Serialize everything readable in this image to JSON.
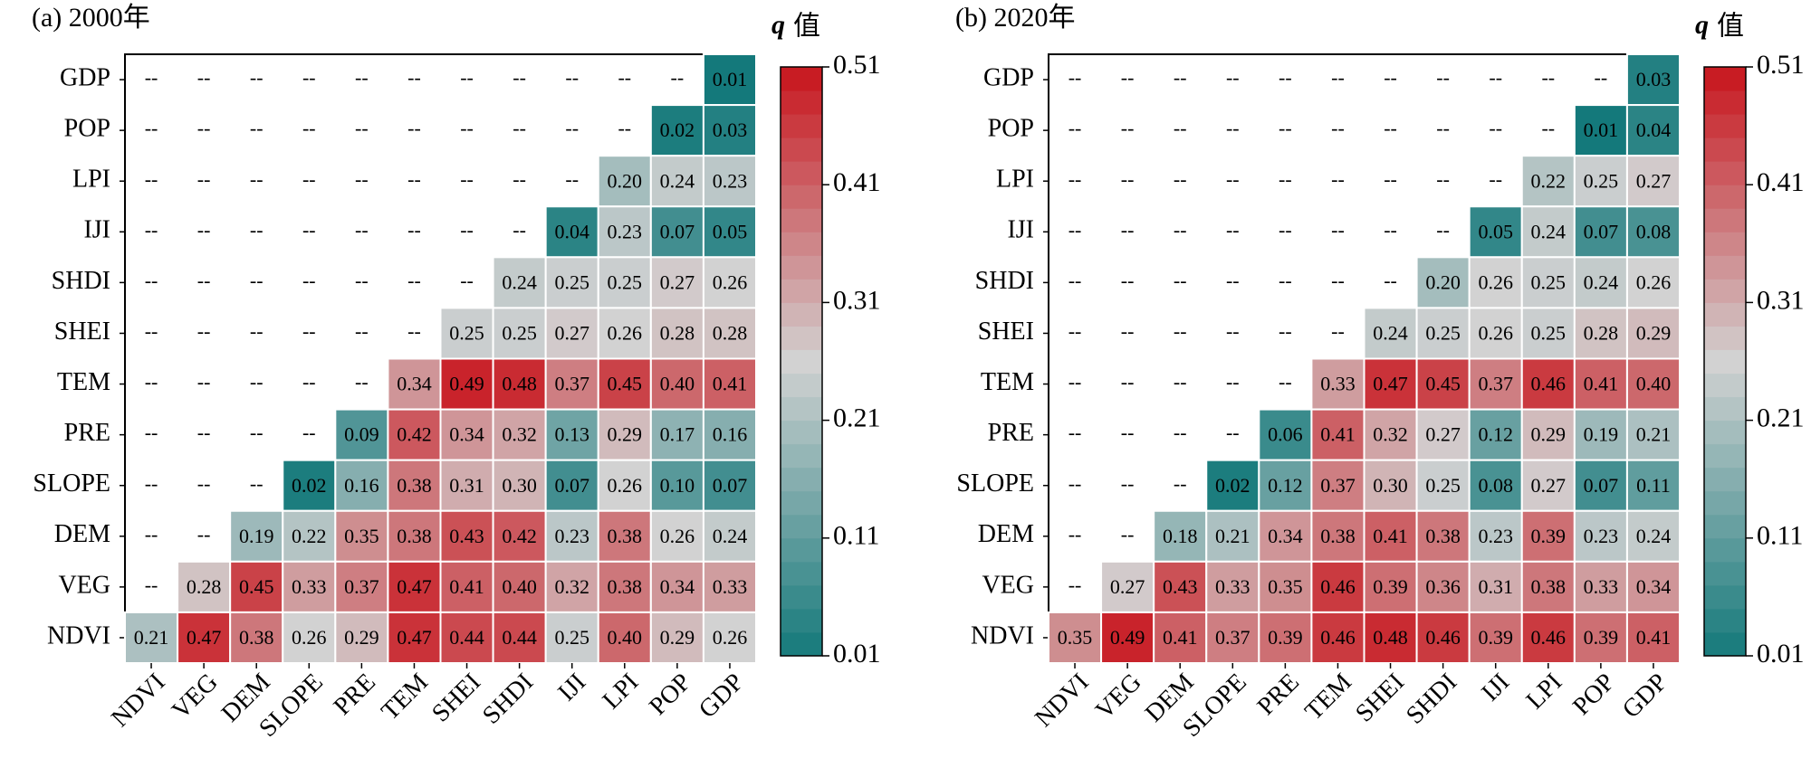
{
  "chart_data": [
    {
      "type": "heatmap",
      "title": "(a) 2000年",
      "colorbar_symbol": "q",
      "colorbar_text": "值",
      "empty_label": "--",
      "rows": [
        "GDP",
        "POP",
        "LPI",
        "IJI",
        "SHDI",
        "SHEI",
        "TEM",
        "PRE",
        "SLOPE",
        "DEM",
        "VEG",
        "NDVI"
      ],
      "columns": [
        "NDVI",
        "VEG",
        "DEM",
        "SLOPE",
        "PRE",
        "TEM",
        "SHEI",
        "SHDI",
        "IJI",
        "LPI",
        "POP",
        "GDP"
      ],
      "values": [
        [
          null,
          null,
          null,
          null,
          null,
          null,
          null,
          null,
          null,
          null,
          null,
          0.01
        ],
        [
          null,
          null,
          null,
          null,
          null,
          null,
          null,
          null,
          null,
          null,
          0.02,
          0.03
        ],
        [
          null,
          null,
          null,
          null,
          null,
          null,
          null,
          null,
          null,
          0.2,
          0.24,
          0.23
        ],
        [
          null,
          null,
          null,
          null,
          null,
          null,
          null,
          null,
          0.04,
          0.23,
          0.07,
          0.05
        ],
        [
          null,
          null,
          null,
          null,
          null,
          null,
          null,
          0.24,
          0.25,
          0.25,
          0.27,
          0.26
        ],
        [
          null,
          null,
          null,
          null,
          null,
          null,
          0.25,
          0.25,
          0.27,
          0.26,
          0.28,
          0.28
        ],
        [
          null,
          null,
          null,
          null,
          null,
          0.34,
          0.49,
          0.48,
          0.37,
          0.45,
          0.4,
          0.41
        ],
        [
          null,
          null,
          null,
          null,
          0.09,
          0.42,
          0.34,
          0.32,
          0.13,
          0.29,
          0.17,
          0.16
        ],
        [
          null,
          null,
          null,
          0.02,
          0.16,
          0.38,
          0.31,
          0.3,
          0.07,
          0.26,
          0.1,
          0.07
        ],
        [
          null,
          null,
          0.19,
          0.22,
          0.35,
          0.38,
          0.43,
          0.42,
          0.23,
          0.38,
          0.26,
          0.24
        ],
        [
          null,
          0.28,
          0.45,
          0.33,
          0.37,
          0.47,
          0.41,
          0.4,
          0.32,
          0.38,
          0.34,
          0.33
        ],
        [
          0.21,
          0.47,
          0.38,
          0.26,
          0.29,
          0.47,
          0.44,
          0.44,
          0.25,
          0.4,
          0.29,
          0.26
        ]
      ],
      "value_labels": [
        [
          null,
          null,
          null,
          null,
          null,
          null,
          null,
          null,
          null,
          null,
          null,
          "0.01"
        ],
        [
          null,
          null,
          null,
          null,
          null,
          null,
          null,
          null,
          null,
          null,
          "0.02",
          "0.03"
        ],
        [
          null,
          null,
          null,
          null,
          null,
          null,
          null,
          null,
          null,
          "0.20",
          "0.24",
          "0.23"
        ],
        [
          null,
          null,
          null,
          null,
          null,
          null,
          null,
          null,
          "0.04",
          "0.23",
          "0.07",
          "0.05"
        ],
        [
          null,
          null,
          null,
          null,
          null,
          null,
          null,
          "0.24",
          "0.25",
          "0.25",
          "0.27",
          "0.26"
        ],
        [
          null,
          null,
          null,
          null,
          null,
          null,
          "0.25",
          "0.25",
          "0.27",
          "0.26",
          "0.28",
          "0.28"
        ],
        [
          null,
          null,
          null,
          null,
          null,
          "0.34",
          "0.49",
          "0.48",
          "0.37",
          "0.45",
          "0.40",
          "0.41"
        ],
        [
          null,
          null,
          null,
          null,
          "0.09",
          "0.42",
          "0.34",
          "0.32",
          "0.13",
          "0.29",
          "0.17",
          "0.16"
        ],
        [
          null,
          null,
          null,
          "0.02",
          "0.16",
          "0.38",
          "0.31",
          "0.30",
          "0.07",
          "0.26",
          "0.10",
          "0.07"
        ],
        [
          null,
          null,
          "0.19",
          "0.22",
          "0.35",
          "0.38",
          "0.43",
          "0.42",
          "0.23",
          "0.38",
          "0.26",
          "0.24"
        ],
        [
          null,
          "0.28",
          "0.45",
          "0.33",
          "0.37",
          "0.47",
          "0.41",
          "0.40",
          "0.32",
          "0.38",
          "0.34",
          "0.33"
        ],
        [
          "0.21",
          "0.47",
          "0.38",
          "0.26",
          "0.29",
          "0.47",
          "0.44",
          "0.44",
          "0.25",
          "0.40",
          "0.29",
          "0.26"
        ]
      ],
      "zlim": [
        0.01,
        0.51
      ],
      "zticks": [
        0.01,
        0.11,
        0.21,
        0.31,
        0.41,
        0.51
      ],
      "colormap": [
        "#14797b",
        "#d2d2d2",
        "#c8141c"
      ]
    },
    {
      "type": "heatmap",
      "title": "(b) 2020年",
      "colorbar_symbol": "q",
      "colorbar_text": "值",
      "empty_label": "--",
      "rows": [
        "GDP",
        "POP",
        "LPI",
        "IJI",
        "SHDI",
        "SHEI",
        "TEM",
        "PRE",
        "SLOPE",
        "DEM",
        "VEG",
        "NDVI"
      ],
      "columns": [
        "NDVI",
        "VEG",
        "DEM",
        "SLOPE",
        "PRE",
        "TEM",
        "SHEI",
        "SHDI",
        "IJI",
        "LPI",
        "POP",
        "GDP"
      ],
      "values": [
        [
          null,
          null,
          null,
          null,
          null,
          null,
          null,
          null,
          null,
          null,
          null,
          0.03
        ],
        [
          null,
          null,
          null,
          null,
          null,
          null,
          null,
          null,
          null,
          null,
          0.01,
          0.04
        ],
        [
          null,
          null,
          null,
          null,
          null,
          null,
          null,
          null,
          null,
          0.22,
          0.25,
          0.27
        ],
        [
          null,
          null,
          null,
          null,
          null,
          null,
          null,
          null,
          0.05,
          0.24,
          0.07,
          0.08
        ],
        [
          null,
          null,
          null,
          null,
          null,
          null,
          null,
          0.2,
          0.26,
          0.25,
          0.24,
          0.26
        ],
        [
          null,
          null,
          null,
          null,
          null,
          null,
          0.24,
          0.25,
          0.26,
          0.25,
          0.28,
          0.29
        ],
        [
          null,
          null,
          null,
          null,
          null,
          0.33,
          0.47,
          0.45,
          0.37,
          0.46,
          0.41,
          0.4
        ],
        [
          null,
          null,
          null,
          null,
          0.06,
          0.41,
          0.32,
          0.27,
          0.12,
          0.29,
          0.19,
          0.21
        ],
        [
          null,
          null,
          null,
          0.02,
          0.12,
          0.37,
          0.3,
          0.25,
          0.08,
          0.27,
          0.07,
          0.11
        ],
        [
          null,
          null,
          0.18,
          0.21,
          0.34,
          0.38,
          0.41,
          0.38,
          0.23,
          0.39,
          0.23,
          0.24
        ],
        [
          null,
          0.27,
          0.43,
          0.33,
          0.35,
          0.46,
          0.39,
          0.36,
          0.31,
          0.38,
          0.33,
          0.34
        ],
        [
          0.35,
          0.49,
          0.41,
          0.37,
          0.39,
          0.46,
          0.48,
          0.46,
          0.39,
          0.46,
          0.39,
          0.41
        ]
      ],
      "value_labels": [
        [
          null,
          null,
          null,
          null,
          null,
          null,
          null,
          null,
          null,
          null,
          null,
          "0.03"
        ],
        [
          null,
          null,
          null,
          null,
          null,
          null,
          null,
          null,
          null,
          null,
          "0.01",
          "0.04"
        ],
        [
          null,
          null,
          null,
          null,
          null,
          null,
          null,
          null,
          null,
          "0.22",
          "0.25",
          "0.27"
        ],
        [
          null,
          null,
          null,
          null,
          null,
          null,
          null,
          null,
          "0.05",
          "0.24",
          "0.07",
          "0.08"
        ],
        [
          null,
          null,
          null,
          null,
          null,
          null,
          null,
          "0.20",
          "0.26",
          "0.25",
          "0.24",
          "0.26"
        ],
        [
          null,
          null,
          null,
          null,
          null,
          null,
          "0.24",
          "0.25",
          "0.26",
          "0.25",
          "0.28",
          "0.29"
        ],
        [
          null,
          null,
          null,
          null,
          null,
          "0.33",
          "0.47",
          "0.45",
          "0.37",
          "0.46",
          "0.41",
          "0.40"
        ],
        [
          null,
          null,
          null,
          null,
          "0.06",
          "0.41",
          "0.32",
          "0.27",
          "0.12",
          "0.29",
          "0.19",
          "0.21"
        ],
        [
          null,
          null,
          null,
          "0.02",
          "0.12",
          "0.37",
          "0.30",
          "0.25",
          "0.08",
          "0.27",
          "0.07",
          "0.11"
        ],
        [
          null,
          null,
          "0.18",
          "0.21",
          "0.34",
          "0.38",
          "0.41",
          "0.38",
          "0.23",
          "0.39",
          "0.23",
          "0.24"
        ],
        [
          null,
          "0.27",
          "0.43",
          "0.33",
          "0.35",
          "0.46",
          "0.39",
          "0.36",
          "0.31",
          "0.38",
          "0.33",
          "0.34"
        ],
        [
          "0.35",
          "0.49",
          "0.41",
          "0.37",
          "0.39",
          "0.46",
          "0.48",
          "0.46",
          "0.39",
          "0.46",
          "0.39",
          "0.41"
        ]
      ],
      "zlim": [
        0.01,
        0.51
      ],
      "zticks": [
        0.01,
        0.11,
        0.21,
        0.31,
        0.41,
        0.51
      ],
      "colormap": [
        "#14797b",
        "#d2d2d2",
        "#c8141c"
      ]
    }
  ]
}
